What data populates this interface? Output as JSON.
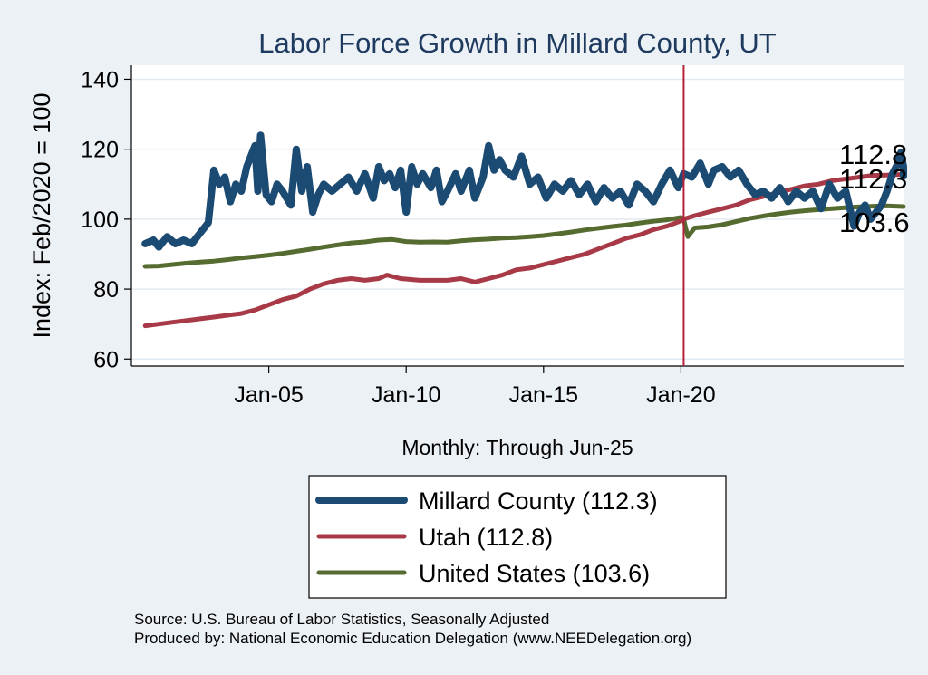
{
  "chart_data": {
    "type": "line",
    "title": "Labor Force Growth in Millard  County, UT",
    "ylabel": "Index: Feb/2020 = 100",
    "xlabel": "Monthly: Through Jun-25",
    "ylim": [
      58,
      144
    ],
    "xlim": [
      2000.0,
      2028.1
    ],
    "yticks": [
      60,
      80,
      100,
      120,
      140
    ],
    "xticks": [
      {
        "value": 2005.0,
        "label": "Jan-05"
      },
      {
        "value": 2010.0,
        "label": "Jan-10"
      },
      {
        "value": 2015.0,
        "label": "Jan-15"
      },
      {
        "value": 2020.0,
        "label": "Jan-20"
      }
    ],
    "reference_line": {
      "x": 2020.1,
      "color": "#b5213b"
    },
    "grid": "horizontal",
    "series": [
      {
        "name": "Millard  County (112.3)",
        "key": "millard",
        "color": "#1b4a73",
        "end_label": "112.3",
        "points": [
          [
            2000.5,
            93
          ],
          [
            2000.8,
            94
          ],
          [
            2001.0,
            92
          ],
          [
            2001.3,
            95
          ],
          [
            2001.6,
            93
          ],
          [
            2001.9,
            94
          ],
          [
            2002.2,
            93
          ],
          [
            2002.5,
            96
          ],
          [
            2002.8,
            99
          ],
          [
            2003.0,
            114
          ],
          [
            2003.2,
            110
          ],
          [
            2003.4,
            112
          ],
          [
            2003.6,
            105
          ],
          [
            2003.8,
            110
          ],
          [
            2004.0,
            108
          ],
          [
            2004.2,
            115
          ],
          [
            2004.5,
            121
          ],
          [
            2004.6,
            108
          ],
          [
            2004.7,
            124
          ],
          [
            2004.9,
            107
          ],
          [
            2005.1,
            105
          ],
          [
            2005.3,
            110
          ],
          [
            2005.5,
            108
          ],
          [
            2005.8,
            104
          ],
          [
            2006.0,
            120
          ],
          [
            2006.2,
            108
          ],
          [
            2006.4,
            115
          ],
          [
            2006.6,
            102
          ],
          [
            2006.8,
            107
          ],
          [
            2007.0,
            110
          ],
          [
            2007.3,
            108
          ],
          [
            2007.6,
            110
          ],
          [
            2007.9,
            112
          ],
          [
            2008.2,
            108
          ],
          [
            2008.5,
            113
          ],
          [
            2008.8,
            106
          ],
          [
            2009.0,
            115
          ],
          [
            2009.2,
            111
          ],
          [
            2009.4,
            113
          ],
          [
            2009.6,
            109
          ],
          [
            2009.8,
            114
          ],
          [
            2010.0,
            102
          ],
          [
            2010.2,
            115
          ],
          [
            2010.4,
            110
          ],
          [
            2010.6,
            113
          ],
          [
            2010.9,
            109
          ],
          [
            2011.1,
            114
          ],
          [
            2011.3,
            105
          ],
          [
            2011.5,
            108
          ],
          [
            2011.8,
            113
          ],
          [
            2012.0,
            108
          ],
          [
            2012.3,
            114
          ],
          [
            2012.5,
            106
          ],
          [
            2012.8,
            112
          ],
          [
            2013.0,
            121
          ],
          [
            2013.2,
            114
          ],
          [
            2013.4,
            117
          ],
          [
            2013.6,
            114
          ],
          [
            2013.9,
            112
          ],
          [
            2014.2,
            118
          ],
          [
            2014.5,
            110
          ],
          [
            2014.8,
            112
          ],
          [
            2015.1,
            106
          ],
          [
            2015.4,
            110
          ],
          [
            2015.7,
            108
          ],
          [
            2016.0,
            111
          ],
          [
            2016.3,
            107
          ],
          [
            2016.6,
            110
          ],
          [
            2016.9,
            105
          ],
          [
            2017.2,
            109
          ],
          [
            2017.5,
            106
          ],
          [
            2017.8,
            108
          ],
          [
            2018.1,
            104
          ],
          [
            2018.4,
            110
          ],
          [
            2018.7,
            108
          ],
          [
            2019.0,
            105
          ],
          [
            2019.3,
            110
          ],
          [
            2019.6,
            114
          ],
          [
            2019.9,
            109
          ],
          [
            2020.1,
            113
          ],
          [
            2020.4,
            112
          ],
          [
            2020.7,
            116
          ],
          [
            2021.0,
            110
          ],
          [
            2021.2,
            114
          ],
          [
            2021.5,
            115
          ],
          [
            2021.8,
            112
          ],
          [
            2022.1,
            114
          ],
          [
            2022.4,
            110
          ],
          [
            2022.7,
            107
          ],
          [
            2023.0,
            108
          ],
          [
            2023.3,
            106
          ],
          [
            2023.6,
            109
          ],
          [
            2023.9,
            105
          ],
          [
            2024.2,
            108
          ],
          [
            2024.5,
            106
          ],
          [
            2024.8,
            108
          ],
          [
            2025.1,
            103
          ],
          [
            2025.4,
            110
          ],
          [
            2025.7,
            106
          ],
          [
            2026.0,
            108
          ],
          [
            2026.3,
            98
          ],
          [
            2026.5,
            102
          ],
          [
            2026.7,
            104
          ],
          [
            2026.9,
            100
          ],
          [
            2027.1,
            102
          ],
          [
            2027.3,
            104
          ],
          [
            2027.5,
            108
          ],
          [
            2027.7,
            113
          ],
          [
            2027.9,
            116
          ],
          [
            2028.0,
            119
          ],
          [
            2028.1,
            115
          ],
          [
            2028.1,
            112.3
          ]
        ]
      },
      {
        "name": "Utah (112.8)",
        "key": "utah",
        "color": "#a83a48",
        "end_label": "112.8",
        "points": [
          [
            2000.5,
            69.5
          ],
          [
            2001.0,
            70
          ],
          [
            2001.5,
            70.5
          ],
          [
            2002.0,
            71
          ],
          [
            2002.5,
            71.5
          ],
          [
            2003.0,
            72
          ],
          [
            2003.5,
            72.5
          ],
          [
            2004.0,
            73
          ],
          [
            2004.5,
            74
          ],
          [
            2005.0,
            75.5
          ],
          [
            2005.5,
            77
          ],
          [
            2006.0,
            78
          ],
          [
            2006.5,
            80
          ],
          [
            2007.0,
            81.5
          ],
          [
            2007.5,
            82.5
          ],
          [
            2008.0,
            83
          ],
          [
            2008.5,
            82.5
          ],
          [
            2009.0,
            83
          ],
          [
            2009.3,
            84
          ],
          [
            2009.8,
            83
          ],
          [
            2010.5,
            82.5
          ],
          [
            2011.0,
            82.5
          ],
          [
            2011.5,
            82.5
          ],
          [
            2012.0,
            83
          ],
          [
            2012.5,
            82
          ],
          [
            2013.0,
            83
          ],
          [
            2013.5,
            84
          ],
          [
            2014.0,
            85.5
          ],
          [
            2014.5,
            86
          ],
          [
            2015.0,
            87
          ],
          [
            2015.5,
            88
          ],
          [
            2016.0,
            89
          ],
          [
            2016.5,
            90
          ],
          [
            2017.0,
            91.5
          ],
          [
            2017.5,
            93
          ],
          [
            2018.0,
            94.5
          ],
          [
            2018.5,
            95.5
          ],
          [
            2019.0,
            97
          ],
          [
            2019.5,
            98
          ],
          [
            2020.0,
            99.5
          ],
          [
            2020.1,
            100
          ],
          [
            2020.5,
            101
          ],
          [
            2021.0,
            102
          ],
          [
            2021.5,
            103
          ],
          [
            2022.0,
            104
          ],
          [
            2022.5,
            105.5
          ],
          [
            2023.0,
            106.5
          ],
          [
            2023.5,
            107.5
          ],
          [
            2024.0,
            108.5
          ],
          [
            2024.5,
            109.5
          ],
          [
            2025.0,
            110
          ],
          [
            2025.5,
            111
          ],
          [
            2026.0,
            111.5
          ],
          [
            2026.5,
            112
          ],
          [
            2027.0,
            112.5
          ],
          [
            2027.5,
            112.6
          ],
          [
            2028.1,
            112.8
          ]
        ]
      },
      {
        "name": "United States (103.6)",
        "key": "us",
        "color": "#556b2f",
        "end_label": "103.6",
        "points": [
          [
            2000.5,
            86.5
          ],
          [
            2001.0,
            86.6
          ],
          [
            2001.5,
            87
          ],
          [
            2002.0,
            87.4
          ],
          [
            2002.5,
            87.7
          ],
          [
            2003.0,
            88
          ],
          [
            2003.5,
            88.4
          ],
          [
            2004.0,
            88.9
          ],
          [
            2004.5,
            89.3
          ],
          [
            2005.0,
            89.7
          ],
          [
            2005.5,
            90.2
          ],
          [
            2006.0,
            90.8
          ],
          [
            2006.5,
            91.4
          ],
          [
            2007.0,
            92
          ],
          [
            2007.5,
            92.6
          ],
          [
            2008.0,
            93.2
          ],
          [
            2008.5,
            93.5
          ],
          [
            2009.0,
            94
          ],
          [
            2009.5,
            94.2
          ],
          [
            2010.0,
            93.6
          ],
          [
            2010.5,
            93.4
          ],
          [
            2011.0,
            93.5
          ],
          [
            2011.5,
            93.4
          ],
          [
            2012.0,
            93.8
          ],
          [
            2012.5,
            94.1
          ],
          [
            2013.0,
            94.3
          ],
          [
            2013.5,
            94.6
          ],
          [
            2014.0,
            94.7
          ],
          [
            2014.5,
            95
          ],
          [
            2015.0,
            95.3
          ],
          [
            2015.5,
            95.8
          ],
          [
            2016.0,
            96.3
          ],
          [
            2016.5,
            96.9
          ],
          [
            2017.0,
            97.4
          ],
          [
            2017.5,
            97.9
          ],
          [
            2018.0,
            98.3
          ],
          [
            2018.5,
            98.9
          ],
          [
            2019.0,
            99.4
          ],
          [
            2019.5,
            99.8
          ],
          [
            2020.0,
            100.5
          ],
          [
            2020.1,
            100
          ],
          [
            2020.25,
            95
          ],
          [
            2020.5,
            97.5
          ],
          [
            2021.0,
            97.8
          ],
          [
            2021.5,
            98.4
          ],
          [
            2022.0,
            99.3
          ],
          [
            2022.5,
            100.2
          ],
          [
            2023.0,
            100.9
          ],
          [
            2023.5,
            101.5
          ],
          [
            2024.0,
            102
          ],
          [
            2024.5,
            102.4
          ],
          [
            2025.0,
            102.7
          ],
          [
            2025.5,
            103
          ],
          [
            2026.0,
            103.3
          ],
          [
            2026.5,
            103.5
          ],
          [
            2027.0,
            103.7
          ],
          [
            2027.5,
            103.8
          ],
          [
            2028.1,
            103.6
          ]
        ]
      }
    ]
  },
  "legend": {
    "items": [
      {
        "label": "Millard  County (112.3)",
        "color": "#1b4a73"
      },
      {
        "label": "Utah (112.8)",
        "color": "#a83a48"
      },
      {
        "label": "United States (103.6)",
        "color": "#556b2f"
      }
    ]
  },
  "footer": {
    "source": "Source: U.S. Bureau of Labor Statistics, Seasonally Adjusted",
    "produced_by": "Produced by: National Economic Education Delegation (www.NEEDelegation.org)"
  }
}
